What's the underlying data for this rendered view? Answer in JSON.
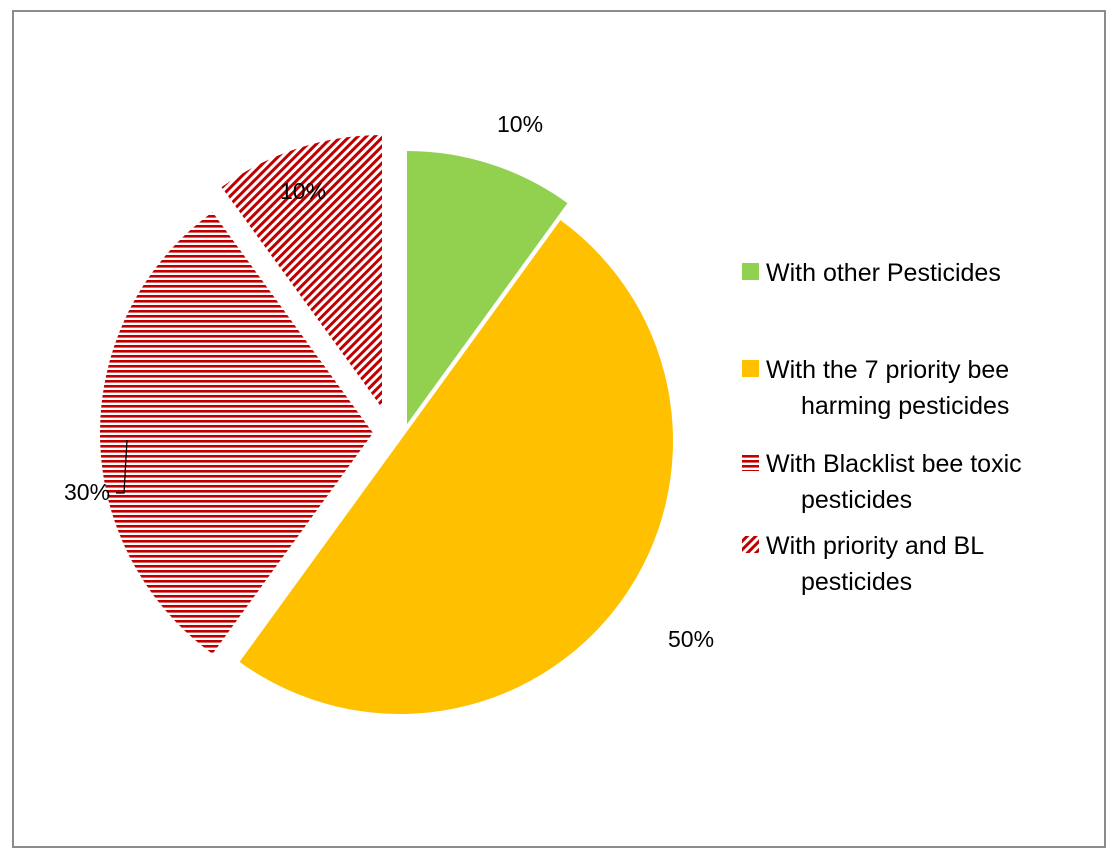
{
  "chart_data": {
    "type": "pie",
    "title": "",
    "start_angle_deg": 0,
    "direction": "clockwise",
    "exploded": true,
    "legend_position": "right",
    "slices": [
      {
        "label": "With other Pesticides",
        "value": 10,
        "data_label": "10%",
        "color": "#92D050",
        "fill_style": "solid"
      },
      {
        "label": "With the 7 priority bee harming pesticides",
        "value": 50,
        "data_label": "50%",
        "color": "#FFC000",
        "fill_style": "solid"
      },
      {
        "label": "With Blacklist bee toxic pesticides",
        "value": 30,
        "data_label": "30%",
        "color": "#C00000",
        "fill_style": "horizontal-stripes"
      },
      {
        "label": "With priority  and  BL pesticides",
        "value": 10,
        "data_label": "10%",
        "color": "#C00000",
        "fill_style": "diagonal-stripes"
      }
    ],
    "legend": {
      "entries": [
        {
          "lines": [
            "With other Pesticides"
          ]
        },
        {
          "lines": [
            "With the 7 priority bee",
            "harming pesticides"
          ]
        },
        {
          "lines": [
            "With Blacklist bee toxic",
            "pesticides"
          ]
        },
        {
          "lines": [
            "With priority  and  BL",
            "pesticides"
          ]
        }
      ]
    }
  }
}
